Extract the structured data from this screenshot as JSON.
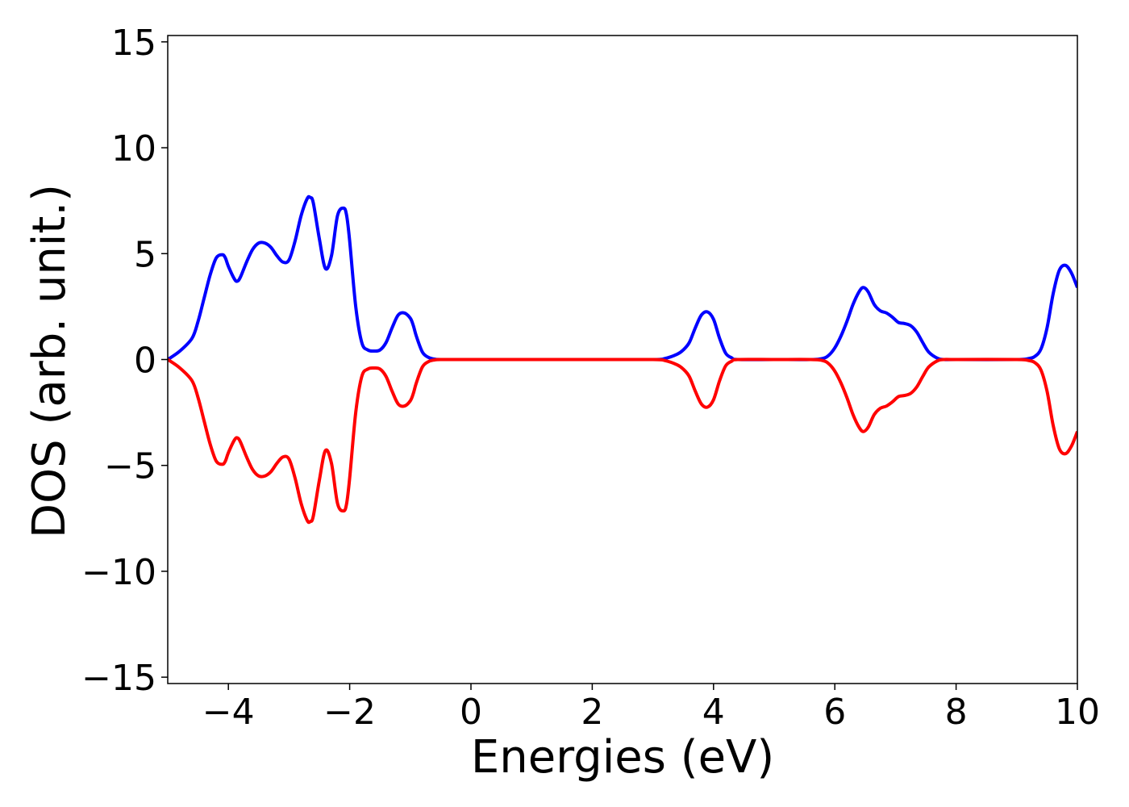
{
  "chart_data": {
    "type": "line",
    "title": "",
    "xlabel": "Energies (eV)",
    "ylabel": "DOS (arb. unit.)",
    "xlim": [
      -5,
      10
    ],
    "ylim": [
      -15.3,
      15.3
    ],
    "xticks": [
      -4,
      -2,
      0,
      2,
      4,
      6,
      8,
      10
    ],
    "xtick_labels": [
      "−4",
      "−2",
      "0",
      "2",
      "4",
      "6",
      "8",
      "10"
    ],
    "yticks": [
      15,
      10,
      5,
      0,
      -5,
      -10,
      -15
    ],
    "ytick_labels": [
      "15",
      "10",
      "5",
      "0",
      "−5",
      "−10",
      "−15"
    ],
    "grid": false,
    "legend": "none",
    "series": [
      {
        "color": "#0000ff",
        "x": [
          -5.0,
          -4.8,
          -4.6,
          -4.5,
          -4.4,
          -4.3,
          -4.2,
          -4.1,
          -4.05,
          -4.0,
          -3.9,
          -3.85,
          -3.8,
          -3.7,
          -3.6,
          -3.5,
          -3.4,
          -3.3,
          -3.2,
          -3.1,
          -3.0,
          -2.9,
          -2.8,
          -2.7,
          -2.65,
          -2.6,
          -2.5,
          -2.4,
          -2.3,
          -2.2,
          -2.1,
          -2.05,
          -2.0,
          -1.9,
          -1.8,
          -1.7,
          -1.6,
          -1.5,
          -1.4,
          -1.3,
          -1.2,
          -1.1,
          -1.0,
          -0.95,
          -0.9,
          -0.8,
          -0.7,
          -0.6,
          -0.5,
          0.0,
          1.0,
          2.0,
          3.0,
          3.2,
          3.4,
          3.5,
          3.6,
          3.7,
          3.8,
          3.9,
          4.0,
          4.1,
          4.2,
          4.3,
          4.4,
          5.0,
          5.6,
          5.8,
          5.9,
          6.0,
          6.1,
          6.2,
          6.3,
          6.4,
          6.47,
          6.55,
          6.65,
          6.75,
          6.85,
          6.95,
          7.05,
          7.15,
          7.25,
          7.35,
          7.45,
          7.55,
          7.7,
          7.8,
          8.0,
          9.0,
          9.2,
          9.3,
          9.4,
          9.5,
          9.6,
          9.7,
          9.8,
          9.9,
          10.0
        ],
        "y": [
          0.0,
          0.4,
          1.0,
          1.8,
          2.9,
          4.0,
          4.8,
          4.95,
          4.8,
          4.4,
          3.8,
          3.7,
          3.9,
          4.6,
          5.2,
          5.5,
          5.5,
          5.3,
          4.9,
          4.6,
          4.7,
          5.6,
          6.8,
          7.6,
          7.65,
          7.4,
          5.7,
          4.3,
          4.9,
          6.8,
          7.15,
          6.8,
          5.6,
          2.5,
          0.8,
          0.45,
          0.4,
          0.45,
          0.8,
          1.5,
          2.1,
          2.2,
          1.95,
          1.6,
          1.1,
          0.35,
          0.1,
          0.02,
          0.0,
          0.0,
          0.0,
          0.0,
          0.0,
          0.05,
          0.25,
          0.45,
          0.8,
          1.5,
          2.1,
          2.25,
          1.9,
          1.0,
          0.3,
          0.08,
          0.0,
          0.0,
          0.0,
          0.05,
          0.2,
          0.55,
          1.1,
          1.8,
          2.6,
          3.2,
          3.4,
          3.2,
          2.6,
          2.3,
          2.2,
          2.0,
          1.75,
          1.7,
          1.6,
          1.3,
          0.8,
          0.35,
          0.05,
          0.0,
          0.0,
          0.0,
          0.05,
          0.15,
          0.5,
          1.5,
          3.1,
          4.2,
          4.45,
          4.1,
          3.4
        ]
      },
      {
        "color": "#ff0000",
        "x": [
          -5.0,
          -4.8,
          -4.6,
          -4.5,
          -4.4,
          -4.3,
          -4.2,
          -4.1,
          -4.05,
          -4.0,
          -3.9,
          -3.85,
          -3.8,
          -3.7,
          -3.6,
          -3.5,
          -3.4,
          -3.3,
          -3.2,
          -3.1,
          -3.0,
          -2.9,
          -2.8,
          -2.7,
          -2.65,
          -2.6,
          -2.5,
          -2.4,
          -2.3,
          -2.2,
          -2.1,
          -2.05,
          -2.0,
          -1.9,
          -1.8,
          -1.7,
          -1.6,
          -1.5,
          -1.4,
          -1.3,
          -1.2,
          -1.1,
          -1.0,
          -0.95,
          -0.9,
          -0.8,
          -0.7,
          -0.6,
          -0.5,
          0.0,
          1.0,
          2.0,
          3.0,
          3.2,
          3.4,
          3.5,
          3.6,
          3.7,
          3.8,
          3.9,
          4.0,
          4.1,
          4.2,
          4.3,
          4.4,
          5.0,
          5.6,
          5.8,
          5.9,
          6.0,
          6.1,
          6.2,
          6.3,
          6.4,
          6.47,
          6.55,
          6.65,
          6.75,
          6.85,
          6.95,
          7.05,
          7.15,
          7.25,
          7.35,
          7.45,
          7.55,
          7.7,
          7.8,
          8.0,
          9.0,
          9.2,
          9.3,
          9.4,
          9.5,
          9.6,
          9.7,
          9.8,
          9.9,
          10.0
        ],
        "y": [
          0.0,
          -0.4,
          -1.0,
          -1.8,
          -2.9,
          -4.0,
          -4.8,
          -4.95,
          -4.8,
          -4.4,
          -3.8,
          -3.7,
          -3.9,
          -4.6,
          -5.2,
          -5.5,
          -5.5,
          -5.3,
          -4.9,
          -4.6,
          -4.7,
          -5.6,
          -6.8,
          -7.6,
          -7.65,
          -7.4,
          -5.7,
          -4.3,
          -4.9,
          -6.8,
          -7.15,
          -6.8,
          -5.6,
          -2.5,
          -0.8,
          -0.45,
          -0.4,
          -0.45,
          -0.8,
          -1.5,
          -2.1,
          -2.2,
          -1.95,
          -1.6,
          -1.1,
          -0.35,
          -0.1,
          -0.02,
          0.0,
          0.0,
          0.0,
          0.0,
          0.0,
          -0.05,
          -0.25,
          -0.45,
          -0.8,
          -1.5,
          -2.1,
          -2.25,
          -1.9,
          -1.0,
          -0.3,
          -0.08,
          0.0,
          0.0,
          0.0,
          -0.05,
          -0.2,
          -0.55,
          -1.1,
          -1.8,
          -2.6,
          -3.2,
          -3.4,
          -3.2,
          -2.6,
          -2.3,
          -2.2,
          -2.0,
          -1.75,
          -1.7,
          -1.6,
          -1.3,
          -0.8,
          -0.35,
          -0.05,
          0.0,
          0.0,
          0.0,
          -0.05,
          -0.15,
          -0.5,
          -1.5,
          -3.1,
          -4.2,
          -4.45,
          -4.1,
          -3.4
        ]
      }
    ]
  }
}
